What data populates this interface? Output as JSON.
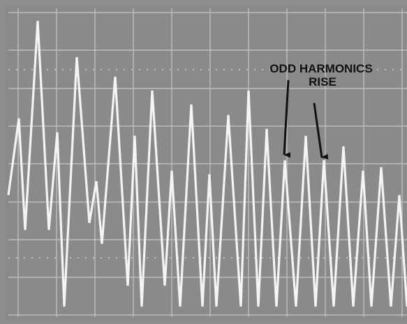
{
  "annotation": {
    "line1": "ODD HARMONICS",
    "line2": "RISE"
  }
}
